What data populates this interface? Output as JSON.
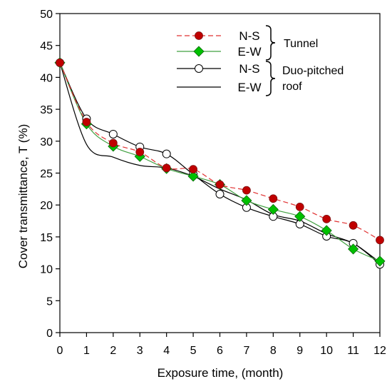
{
  "chart_data": {
    "type": "line",
    "title": "",
    "xlabel": "Exposure time, (month)",
    "ylabel": "Cover transmittance, T (%)",
    "xlim": [
      0,
      12
    ],
    "ylim": [
      0,
      50
    ],
    "xticks": [
      0,
      1,
      2,
      3,
      4,
      5,
      6,
      7,
      8,
      9,
      10,
      11,
      12
    ],
    "yticks": [
      0,
      5,
      10,
      15,
      20,
      25,
      30,
      35,
      40,
      45,
      50
    ],
    "grid": false,
    "legend_position": "top-right",
    "x": [
      0,
      1,
      2,
      3,
      4,
      5,
      6,
      7,
      8,
      9,
      10,
      11,
      12
    ],
    "series": [
      {
        "name": "N-S",
        "group": "Tunnel",
        "color": "#c00000",
        "line_color": "#e03030",
        "dash": true,
        "marker": "circle-filled",
        "values": [
          42.3,
          33.0,
          29.7,
          28.3,
          25.8,
          25.6,
          23.2,
          22.3,
          21.0,
          19.7,
          17.8,
          16.8,
          14.5
        ]
      },
      {
        "name": "E-W",
        "group": "Tunnel",
        "color": "#00c000",
        "line_color": "#40a040",
        "dash": false,
        "marker": "diamond-filled",
        "values": [
          42.3,
          32.7,
          29.2,
          27.6,
          25.7,
          24.5,
          23.2,
          20.7,
          19.3,
          18.2,
          16.0,
          13.1,
          11.2
        ]
      },
      {
        "name": "N-S",
        "group": "Duo-pitched roof",
        "color": "#000000",
        "line_color": "#000000",
        "dash": false,
        "marker": "circle-open",
        "values": [
          42.3,
          33.5,
          31.1,
          29.1,
          28.0,
          24.8,
          21.7,
          19.6,
          18.2,
          17.0,
          15.1,
          14.0,
          10.7
        ]
      },
      {
        "name": "E-W",
        "group": "Duo-pitched roof",
        "color": "#000000",
        "line_color": "#000000",
        "dash": false,
        "marker": "none",
        "values": [
          42.3,
          29.5,
          27.5,
          26.2,
          25.8,
          24.5,
          22.5,
          20.8,
          18.5,
          17.5,
          15.5,
          14.0,
          11.0
        ]
      }
    ],
    "legend": {
      "groups": [
        {
          "label": "Tunnel",
          "entries": [
            "N-S",
            "E-W"
          ]
        },
        {
          "label": "Duo-pitched roof",
          "label_lines": [
            "Duo-pitched",
            "roof"
          ],
          "entries": [
            "N-S",
            "E-W"
          ]
        }
      ]
    }
  }
}
